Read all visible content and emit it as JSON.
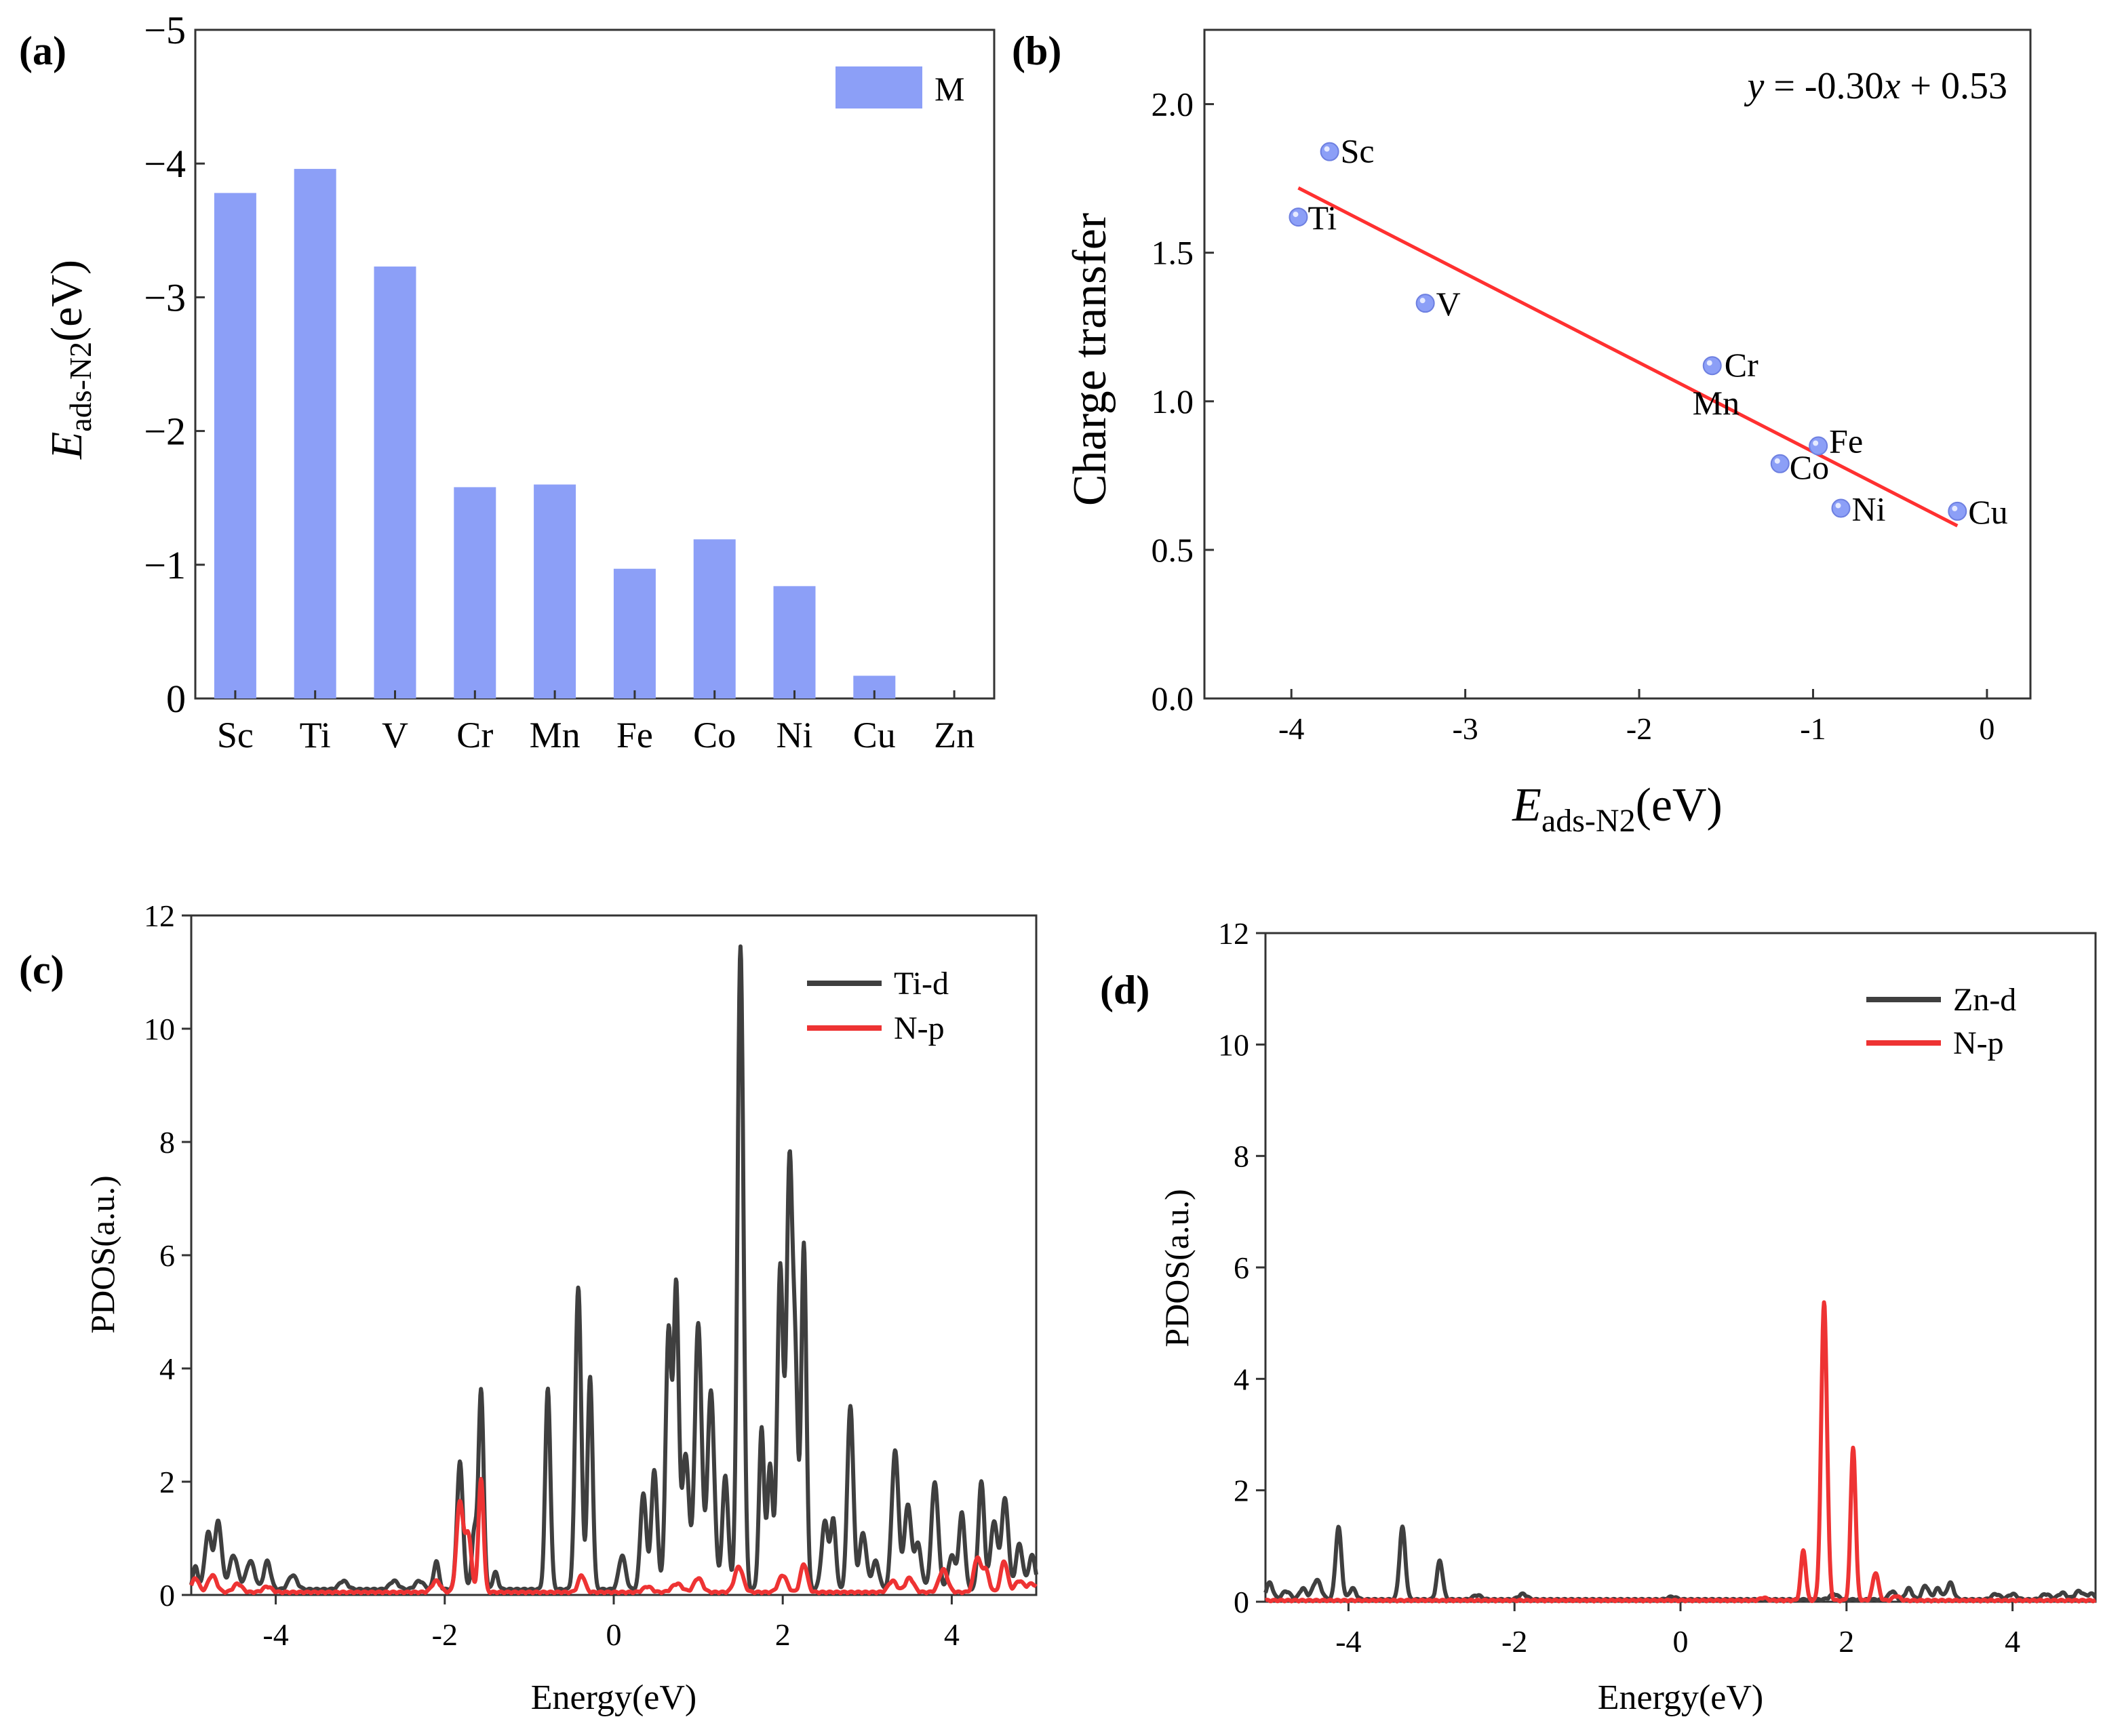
{
  "chart_data": [
    {
      "panel": "(a)",
      "type": "bar",
      "categories": [
        "Sc",
        "Ti",
        "V",
        "Cr",
        "Mn",
        "Fe",
        "Co",
        "Ni",
        "Cu",
        "Zn"
      ],
      "values": [
        -3.78,
        -3.96,
        -3.23,
        -1.58,
        -1.6,
        -0.97,
        -1.19,
        -0.84,
        -0.17,
        0
      ],
      "series_name": "M",
      "ylabel_main": "E",
      "ylabel_sub": "ads-N2",
      "ylabel_unit": "(eV)",
      "ylim": [
        0,
        -5
      ],
      "yticks": [
        0,
        -1,
        -2,
        -3,
        -4,
        -5
      ],
      "ytick_labels": [
        "0",
        "−1",
        "−2",
        "−3",
        "−4",
        "−5"
      ],
      "bar_color": "#8c9ff7",
      "grid": false,
      "legend": "top-right"
    },
    {
      "panel": "(b)",
      "type": "scatter",
      "points": [
        {
          "label": "Sc",
          "x": -3.78,
          "y": 1.84
        },
        {
          "label": "Ti",
          "x": -3.96,
          "y": 1.62
        },
        {
          "label": "V",
          "x": -3.23,
          "y": 1.33
        },
        {
          "label": "Cr",
          "x": -1.58,
          "y": 1.12
        },
        {
          "label": "Mn",
          "x": -1.6,
          "y": 1.12
        },
        {
          "label": "Fe",
          "x": -0.97,
          "y": 0.85
        },
        {
          "label": "Co",
          "x": -1.19,
          "y": 0.79
        },
        {
          "label": "Ni",
          "x": -0.84,
          "y": 0.64
        },
        {
          "label": "Cu",
          "x": -0.17,
          "y": 0.63
        }
      ],
      "fit": {
        "slope": -0.3,
        "intercept": 0.53,
        "x_range": [
          -3.96,
          -0.17
        ],
        "color": "#ff3030"
      },
      "equation_prefix": "y",
      "equation_mid": " = -0.30",
      "equation_x": "x",
      "equation_suffix": " + 0.53",
      "xlabel_main": "E",
      "xlabel_sub": "ads-N2",
      "xlabel_unit": "(eV)",
      "ylabel": "Charge transfer",
      "xlim": [
        -4.5,
        0.25
      ],
      "ylim": [
        0,
        2.25
      ],
      "xticks": [
        -4,
        -3,
        -2,
        -1,
        0
      ],
      "xtick_labels": [
        "-4",
        "-3",
        "-2",
        "-1",
        "0"
      ],
      "yticks": [
        0,
        0.5,
        1,
        1.5,
        2
      ],
      "ytick_labels": [
        "0.0",
        "0.5",
        "1.0",
        "1.5",
        "2.0"
      ],
      "point_color": "#8c9ff7",
      "grid": false
    },
    {
      "panel": "(c)",
      "type": "line",
      "xlabel": "Energy(eV)",
      "ylabel": "PDOS(a.u.)",
      "xlim": [
        -5,
        5
      ],
      "ylim": [
        0,
        12
      ],
      "xticks": [
        -4,
        -2,
        0,
        2,
        4
      ],
      "xtick_labels": [
        "-4",
        "-2",
        "0",
        "2",
        "4"
      ],
      "yticks": [
        0,
        2,
        4,
        6,
        8,
        10,
        12
      ],
      "ytick_labels": [
        "0",
        "2",
        "4",
        "6",
        "8",
        "10",
        "12"
      ],
      "legend": "top-right",
      "series": [
        {
          "name": "Ti-d",
          "color": "#3f3f3f",
          "baseline": 0.08,
          "peaks": [
            [
              -4.95,
              0.4,
              0.03
            ],
            [
              -4.8,
              1.0,
              0.04
            ],
            [
              -4.68,
              1.2,
              0.04
            ],
            [
              -4.5,
              0.6,
              0.05
            ],
            [
              -4.3,
              0.5,
              0.05
            ],
            [
              -4.1,
              0.5,
              0.04
            ],
            [
              -3.8,
              0.25,
              0.05
            ],
            [
              -3.2,
              0.15,
              0.05
            ],
            [
              -2.6,
              0.15,
              0.05
            ],
            [
              -2.3,
              0.15,
              0.05
            ],
            [
              -2.1,
              0.5,
              0.03
            ],
            [
              -1.82,
              2.25,
              0.035
            ],
            [
              -1.65,
              1.0,
              0.03
            ],
            [
              -1.57,
              3.5,
              0.03
            ],
            [
              -1.4,
              0.3,
              0.03
            ],
            [
              -0.78,
              3.55,
              0.03
            ],
            [
              -0.42,
              5.35,
              0.035
            ],
            [
              -0.28,
              3.75,
              0.03
            ],
            [
              0.1,
              0.6,
              0.04
            ],
            [
              0.35,
              1.7,
              0.035
            ],
            [
              0.48,
              2.1,
              0.035
            ],
            [
              0.65,
              4.6,
              0.035
            ],
            [
              0.74,
              5.25,
              0.03
            ],
            [
              0.85,
              2.4,
              0.04
            ],
            [
              1.0,
              4.7,
              0.04
            ],
            [
              1.15,
              3.5,
              0.04
            ],
            [
              1.32,
              2.0,
              0.035
            ],
            [
              1.5,
              11.35,
              0.035
            ],
            [
              1.75,
              2.85,
              0.03
            ],
            [
              1.85,
              2.2,
              0.03
            ],
            [
              1.97,
              5.7,
              0.035
            ],
            [
              2.08,
              7.45,
              0.035
            ],
            [
              2.15,
              3.5,
              0.03
            ],
            [
              2.25,
              6.1,
              0.03
            ],
            [
              2.5,
              1.2,
              0.04
            ],
            [
              2.6,
              1.2,
              0.03
            ],
            [
              2.8,
              3.25,
              0.035
            ],
            [
              2.95,
              1.0,
              0.04
            ],
            [
              3.1,
              0.5,
              0.04
            ],
            [
              3.33,
              2.45,
              0.04
            ],
            [
              3.48,
              1.5,
              0.04
            ],
            [
              3.6,
              0.8,
              0.04
            ],
            [
              3.8,
              1.9,
              0.04
            ],
            [
              4.0,
              0.6,
              0.04
            ],
            [
              4.12,
              1.35,
              0.035
            ],
            [
              4.35,
              1.9,
              0.035
            ],
            [
              4.5,
              1.2,
              0.04
            ],
            [
              4.63,
              1.6,
              0.04
            ],
            [
              4.8,
              0.8,
              0.04
            ],
            [
              4.95,
              0.6,
              0.04
            ]
          ]
        },
        {
          "name": "N-p",
          "color": "#ee3333",
          "baseline": 0.03,
          "peaks": [
            [
              -4.95,
              0.25,
              0.04
            ],
            [
              -4.75,
              0.3,
              0.05
            ],
            [
              -4.45,
              0.15,
              0.05
            ],
            [
              -4.1,
              0.1,
              0.05
            ],
            [
              -2.1,
              0.2,
              0.05
            ],
            [
              -1.82,
              1.6,
              0.04
            ],
            [
              -1.72,
              1.0,
              0.035
            ],
            [
              -1.57,
              2.0,
              0.03
            ],
            [
              -0.38,
              0.3,
              0.04
            ],
            [
              0.4,
              0.1,
              0.05
            ],
            [
              0.75,
              0.15,
              0.06
            ],
            [
              1.0,
              0.25,
              0.05
            ],
            [
              1.48,
              0.45,
              0.05
            ],
            [
              2.0,
              0.3,
              0.05
            ],
            [
              2.25,
              0.5,
              0.04
            ],
            [
              3.3,
              0.2,
              0.05
            ],
            [
              3.5,
              0.25,
              0.05
            ],
            [
              3.9,
              0.4,
              0.05
            ],
            [
              4.3,
              0.6,
              0.04
            ],
            [
              4.4,
              0.4,
              0.04
            ],
            [
              4.62,
              0.55,
              0.04
            ],
            [
              4.8,
              0.2,
              0.05
            ],
            [
              4.95,
              0.15,
              0.05
            ]
          ]
        }
      ]
    },
    {
      "panel": "(d)",
      "type": "line",
      "xlabel": "Energy(eV)",
      "ylabel": "PDOS(a.u.)",
      "xlim": [
        -5,
        5
      ],
      "ylim": [
        0,
        12
      ],
      "xticks": [
        -4,
        -2,
        0,
        2,
        4
      ],
      "xtick_labels": [
        "-4",
        "-2",
        "0",
        "2",
        "4"
      ],
      "yticks": [
        0,
        2,
        4,
        6,
        8,
        10,
        12
      ],
      "ytick_labels": [
        "0",
        "2",
        "4",
        "6",
        "8",
        "10",
        "12"
      ],
      "legend": "top-right",
      "series": [
        {
          "name": "Zn-d",
          "color": "#3f3f3f",
          "baseline": 0.02,
          "peaks": [
            [
              -4.95,
              0.3,
              0.04
            ],
            [
              -4.75,
              0.15,
              0.05
            ],
            [
              -4.55,
              0.2,
              0.04
            ],
            [
              -4.38,
              0.35,
              0.05
            ],
            [
              -4.12,
              1.3,
              0.035
            ],
            [
              -3.95,
              0.2,
              0.04
            ],
            [
              -3.35,
              1.3,
              0.035
            ],
            [
              -2.9,
              0.7,
              0.035
            ],
            [
              -2.45,
              0.08,
              0.05
            ],
            [
              -1.9,
              0.1,
              0.05
            ],
            [
              -0.1,
              0.05,
              0.05
            ],
            [
              1.85,
              0.1,
              0.05
            ],
            [
              2.55,
              0.15,
              0.04
            ],
            [
              2.75,
              0.2,
              0.04
            ],
            [
              2.95,
              0.25,
              0.04
            ],
            [
              3.1,
              0.2,
              0.04
            ],
            [
              3.25,
              0.3,
              0.04
            ],
            [
              3.8,
              0.1,
              0.05
            ],
            [
              4.0,
              0.1,
              0.05
            ],
            [
              4.4,
              0.1,
              0.05
            ],
            [
              4.6,
              0.12,
              0.05
            ],
            [
              4.8,
              0.15,
              0.05
            ],
            [
              4.95,
              0.1,
              0.05
            ]
          ]
        },
        {
          "name": "N-p",
          "color": "#ee3333",
          "baseline": 0.005,
          "peaks": [
            [
              1.48,
              0.9,
              0.03
            ],
            [
              1.73,
              5.35,
              0.035
            ],
            [
              2.08,
              2.75,
              0.03
            ],
            [
              2.35,
              0.5,
              0.035
            ],
            [
              1.0,
              0.05,
              0.04
            ],
            [
              2.6,
              0.08,
              0.04
            ]
          ]
        }
      ]
    }
  ]
}
